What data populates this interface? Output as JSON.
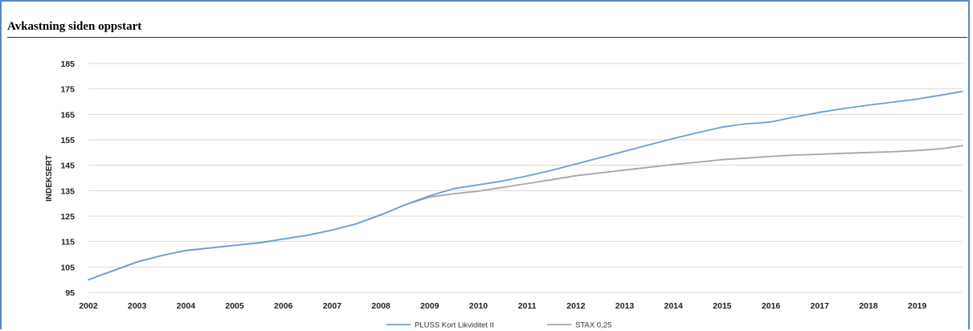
{
  "page": {
    "title": "Avkastning siden oppstart"
  },
  "colors": {
    "series1": "#6a9fd8",
    "series2": "#a6a6a6",
    "grid": "#d9d9d9",
    "frame": "#5b86c4"
  },
  "chart_data": {
    "type": "line",
    "title": "Avkastning siden oppstart",
    "xlabel": "",
    "ylabel": "INDEKSERT",
    "xlim": [
      2002,
      2019.93
    ],
    "ylim": [
      95,
      185
    ],
    "yticks": [
      95,
      105,
      115,
      125,
      135,
      145,
      155,
      165,
      175,
      185
    ],
    "xticks": [
      "2002",
      "2003",
      "2004",
      "2005",
      "2006",
      "2007",
      "2008",
      "2009",
      "2010",
      "2011",
      "2012",
      "2013",
      "2014",
      "2015",
      "2016",
      "2017",
      "2018",
      "2019"
    ],
    "grid": "horizontal",
    "legend_position": "bottom",
    "series": [
      {
        "name": "PLUSS Kort Likviditet II",
        "color": "#6a9fd8",
        "x": [
          2002,
          2002.5,
          2003,
          2003.5,
          2004,
          2004.5,
          2005,
          2005.5,
          2006,
          2006.5,
          2007,
          2007.5,
          2008,
          2008.5,
          2009,
          2009.5,
          2010,
          2010.5,
          2011,
          2011.5,
          2012,
          2012.5,
          2013,
          2013.5,
          2014,
          2014.5,
          2015,
          2015.5,
          2015.7,
          2016,
          2016.5,
          2017,
          2017.5,
          2018,
          2018.5,
          2019,
          2019.5,
          2019.93
        ],
        "values": [
          100,
          103.5,
          107,
          109.5,
          111.5,
          112.5,
          113.5,
          114.5,
          116,
          117.5,
          119.5,
          122,
          125.5,
          129.5,
          133,
          135.8,
          137.3,
          138.8,
          140.8,
          143,
          145.5,
          148,
          150.5,
          153,
          155.5,
          157.8,
          160,
          161.3,
          161.5,
          162,
          164,
          165.8,
          167.3,
          168.6,
          169.8,
          171,
          172.6,
          174
        ]
      },
      {
        "name": "STAX 0,25",
        "color": "#a6a6a6",
        "x": [
          2002,
          2002.5,
          2003,
          2003.5,
          2004,
          2004.5,
          2005,
          2005.5,
          2006,
          2006.5,
          2007,
          2007.5,
          2008,
          2008.5,
          2009,
          2009.5,
          2010,
          2010.5,
          2011,
          2011.5,
          2012,
          2012.5,
          2013,
          2013.5,
          2014,
          2014.5,
          2015,
          2015.5,
          2016,
          2016.5,
          2017,
          2017.5,
          2018,
          2018.5,
          2019,
          2019.5,
          2019.93
        ],
        "values": [
          100,
          103.5,
          107,
          109.5,
          111.5,
          112.5,
          113.5,
          114.5,
          116,
          117.5,
          119.5,
          122,
          125.5,
          129.5,
          132.5,
          133.8,
          134.8,
          136.3,
          137.8,
          139.3,
          140.9,
          142,
          143.1,
          144.2,
          145.3,
          146.2,
          147.2,
          147.8,
          148.5,
          149,
          149.3,
          149.7,
          150,
          150.3,
          150.8,
          151.5,
          152.7
        ]
      }
    ]
  }
}
